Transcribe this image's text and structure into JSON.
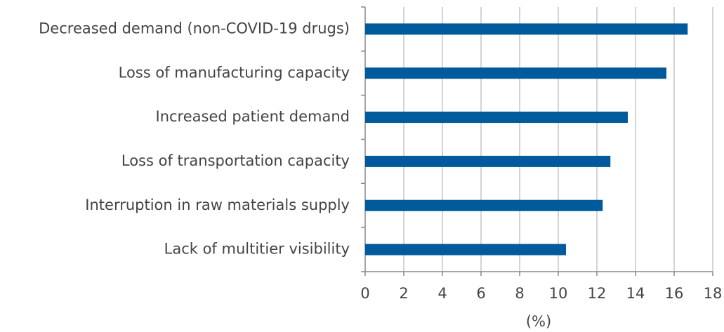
{
  "chart_data": {
    "type": "hbar",
    "categories": [
      "Decreased demand (non-COVID-19 drugs)",
      "Loss of manufacturing capacity",
      "Increased patient demand",
      "Loss of transportation capacity",
      "Interruption in raw materials supply",
      "Lack of multitier visibility"
    ],
    "values": [
      16.7,
      15.6,
      13.6,
      12.7,
      12.3,
      10.4
    ],
    "color": "#005a9c",
    "xlabel": "(%)",
    "xlim": [
      0,
      18
    ],
    "xticks": [
      0,
      2,
      4,
      6,
      8,
      10,
      12,
      14,
      16,
      18
    ],
    "grid": true
  }
}
